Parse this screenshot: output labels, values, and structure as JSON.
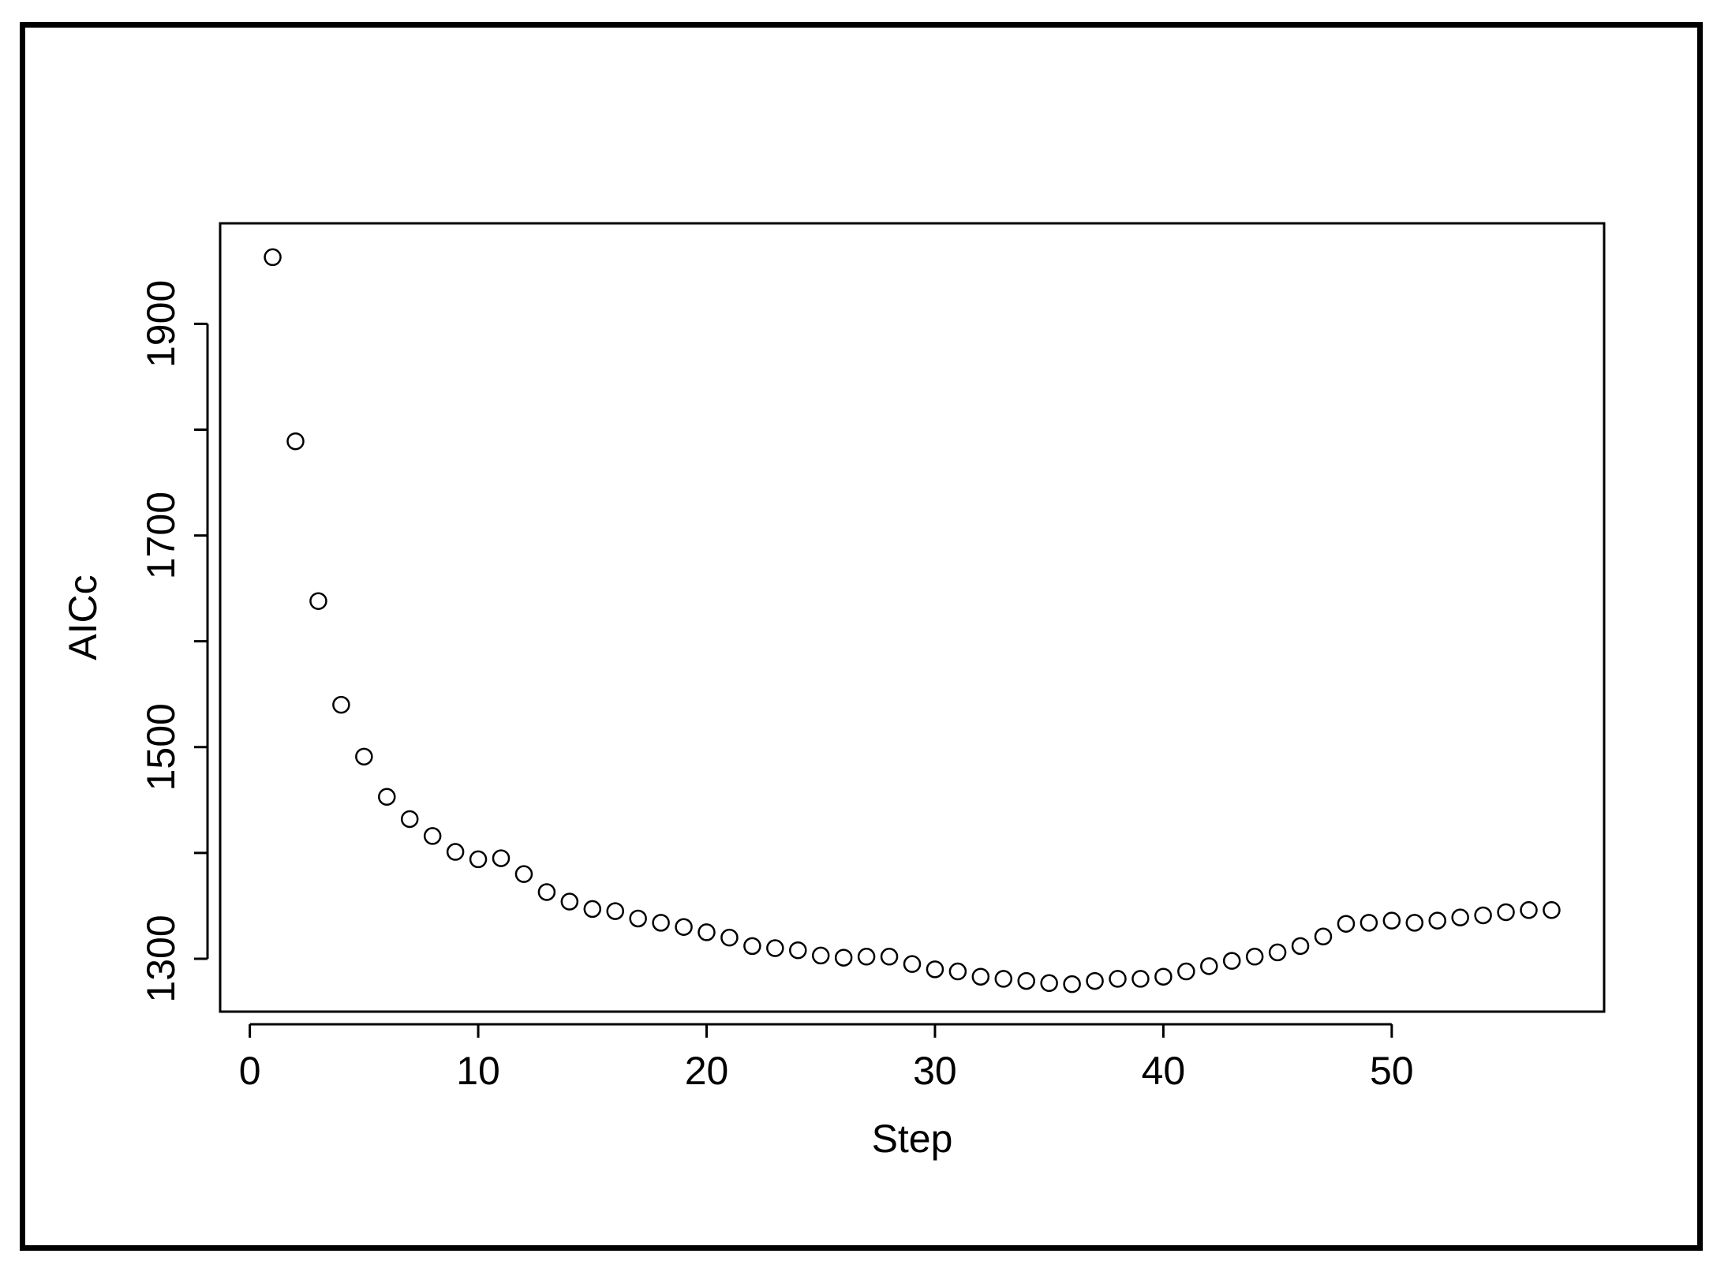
{
  "chart_data": {
    "type": "scatter",
    "title": "",
    "xlabel": "Step",
    "ylabel": "AICc",
    "xlim": [
      -1.3,
      59.3
    ],
    "ylim": [
      1250,
      1995
    ],
    "xticks": [
      0,
      10,
      20,
      30,
      40,
      50
    ],
    "xtick_labels": [
      "0",
      "10",
      "20",
      "30",
      "40",
      "50"
    ],
    "yticks": [
      1300,
      1400,
      1500,
      1600,
      1700,
      1800,
      1900
    ],
    "ytick_labels": [
      "1300",
      "",
      "1500",
      "",
      "1700",
      "",
      "1900"
    ],
    "grid": false,
    "legend": "none",
    "marker": "open-circle",
    "colors": {
      "marker": "#000000",
      "axis": "#000000",
      "background": "#ffffff",
      "frame": "#000000"
    },
    "series": [
      {
        "x": [
          1,
          2,
          3,
          4,
          5,
          6,
          7,
          8,
          9,
          10,
          11,
          12,
          13,
          14,
          15,
          16,
          17,
          18,
          19,
          20,
          21,
          22,
          23,
          24,
          25,
          26,
          27,
          28,
          29,
          30,
          31,
          32,
          33,
          34,
          35,
          36,
          37,
          38,
          39,
          40,
          41,
          42,
          43,
          44,
          45,
          46,
          47,
          48,
          49,
          50,
          51,
          52,
          53,
          54,
          55,
          56,
          57
        ],
        "y": [
          1963,
          1789,
          1638,
          1540,
          1491,
          1453,
          1432,
          1416,
          1401,
          1394,
          1395,
          1380,
          1363,
          1354,
          1347,
          1345,
          1338,
          1334,
          1330,
          1325,
          1320,
          1312,
          1310,
          1308,
          1303,
          1301,
          1302,
          1302,
          1295,
          1290,
          1288,
          1283,
          1281,
          1279,
          1277,
          1276,
          1279,
          1281,
          1281,
          1283,
          1288,
          1293,
          1298,
          1302,
          1306,
          1312,
          1321,
          1333,
          1334,
          1336,
          1334,
          1336,
          1339,
          1341,
          1344,
          1346,
          1346
        ]
      }
    ]
  }
}
